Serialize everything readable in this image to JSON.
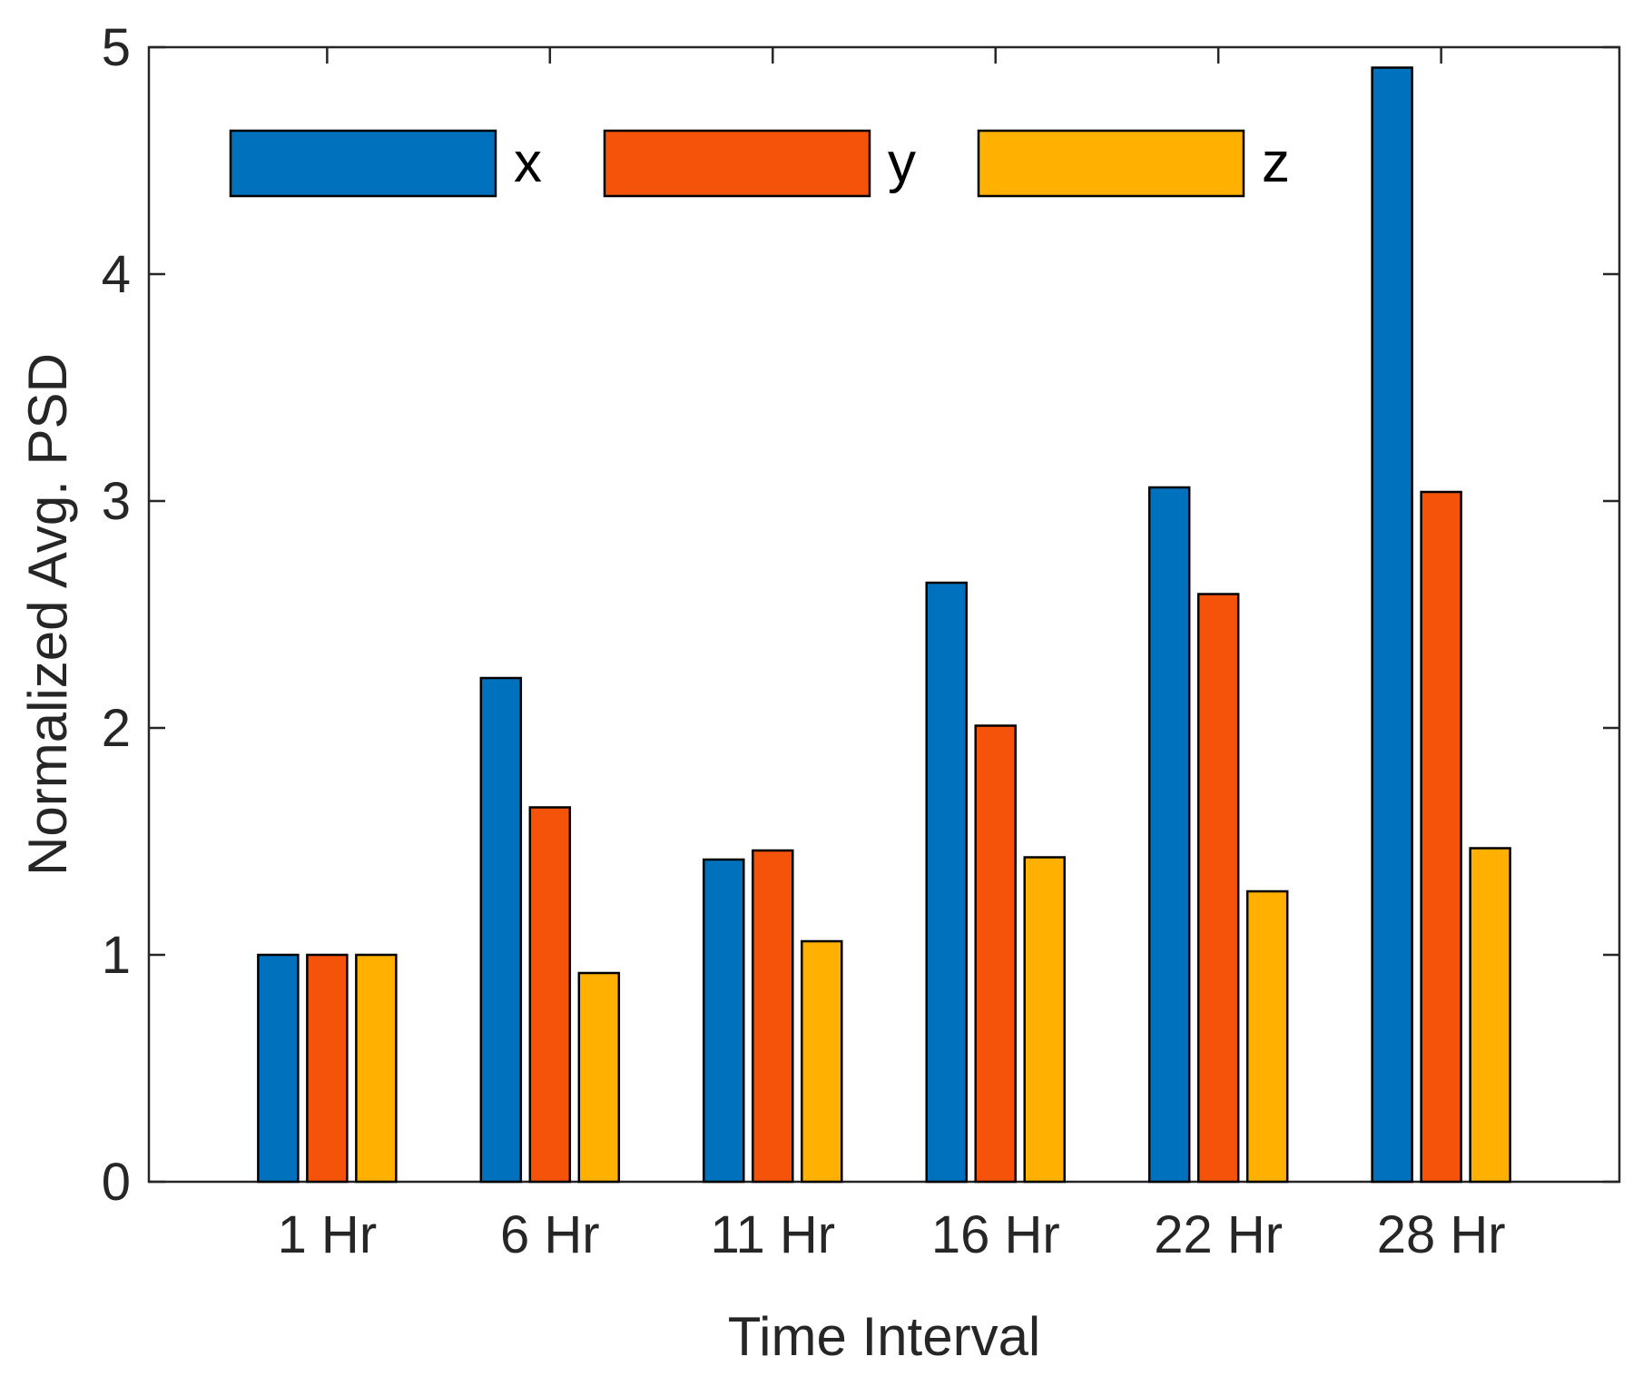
{
  "chart_data": {
    "type": "bar",
    "title": "",
    "xlabel": "Time Interval",
    "ylabel": "Normalized Avg. PSD",
    "categories": [
      "1 Hr",
      "6 Hr",
      "11 Hr",
      "16 Hr",
      "22 Hr",
      "28 Hr"
    ],
    "series": [
      {
        "name": "x",
        "color": "#0072BD",
        "values": [
          1.0,
          2.22,
          1.42,
          2.64,
          3.06,
          4.91
        ]
      },
      {
        "name": "y",
        "color": "#F5520A",
        "values": [
          1.0,
          1.65,
          1.46,
          2.01,
          2.59,
          3.04
        ]
      },
      {
        "name": "z",
        "color": "#FFB000",
        "values": [
          1.0,
          0.92,
          1.06,
          1.43,
          1.28,
          1.47
        ]
      }
    ],
    "ylim": [
      0,
      5
    ],
    "yticks": [
      "0",
      "1",
      "2",
      "3",
      "4",
      "5"
    ],
    "legend": {
      "position": "top-left",
      "orientation": "horizontal"
    },
    "grid": false
  }
}
